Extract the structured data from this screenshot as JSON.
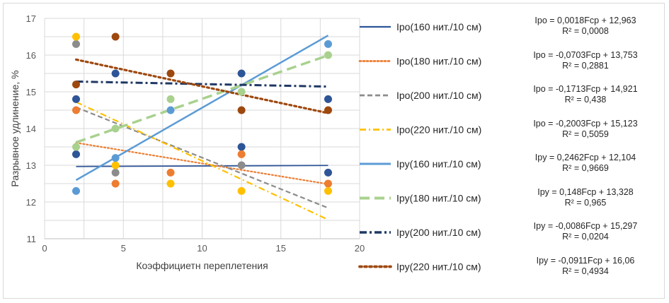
{
  "chart_data": {
    "type": "scatter",
    "xlabel": "Коэффициетн переплетения",
    "ylabel": "Разрывное удлинение, %",
    "xlim": [
      0,
      20
    ],
    "ylim": [
      11,
      17
    ],
    "xticks": [
      "0",
      "5",
      "10",
      "15",
      "20"
    ],
    "yticks": [
      "11",
      "12",
      "13",
      "14",
      "15",
      "16",
      "17"
    ],
    "grid": true,
    "legend_position": "right",
    "series": [
      {
        "name": "Ipo(160 нит./10 см)",
        "color": "#2e5597",
        "dash": "solid",
        "width": 1.8,
        "points": [
          [
            2,
            14.8
          ],
          [
            2,
            13.3
          ],
          [
            4.5,
            15.5
          ],
          [
            12.5,
            15.5
          ],
          [
            12.5,
            13.5
          ],
          [
            18,
            14.8
          ],
          [
            18,
            12.8
          ]
        ],
        "trend": {
          "slope": 0.0018,
          "intercept": 12.963
        },
        "equation": "Ipo = 0,0018Fcp + 12,963",
        "r2": "R² = 0,0008"
      },
      {
        "name": "Ipo(180 нит./10 см)",
        "color": "#ed7d31",
        "dash": "dot",
        "width": 2.2,
        "points": [
          [
            2,
            14.5
          ],
          [
            4.5,
            12.5
          ],
          [
            8,
            12.8
          ],
          [
            12.5,
            13.3
          ],
          [
            18,
            12.5
          ]
        ],
        "trend": {
          "slope": -0.0703,
          "intercept": 13.753
        },
        "equation": "Ipo = -0,0703Fcp + 13,753",
        "r2": "R² = 0,2881"
      },
      {
        "name": "Ipo(200 нит./10 см)",
        "color": "#8c8c8c",
        "dash": "dash",
        "width": 2.2,
        "points": [
          [
            2,
            16.3
          ],
          [
            4.5,
            12.8
          ],
          [
            12.5,
            13.0
          ]
        ],
        "trend": {
          "slope": -0.1713,
          "intercept": 14.921
        },
        "equation": "Ipo = -0,1713Fcp + 14,921",
        "r2": "R² = 0,438"
      },
      {
        "name": "Ipo(220 нит./10 см)",
        "color": "#ffc000",
        "dash": "dashdot",
        "width": 2.2,
        "points": [
          [
            2,
            16.5
          ],
          [
            4.5,
            13.0
          ],
          [
            8,
            12.5
          ],
          [
            12.5,
            12.3
          ],
          [
            18,
            12.3
          ]
        ],
        "trend": {
          "slope": -0.2003,
          "intercept": 15.123
        },
        "equation": "Ipo = -0,2003Fcp + 15,123",
        "r2": "R² = 0,5059"
      },
      {
        "name": "Ipy(160 нит./10 см)",
        "color": "#5b9bd5",
        "dash": "solid",
        "width": 2.5,
        "points": [
          [
            2,
            12.3
          ],
          [
            4.5,
            13.2
          ],
          [
            8,
            14.5
          ],
          [
            18,
            16.3
          ]
        ],
        "trend": {
          "slope": 0.2462,
          "intercept": 12.104
        },
        "equation": "Ipy = 0,2462Fcp + 12,104",
        "r2": "R² = 0,9669"
      },
      {
        "name": "Ipy(180 нит./10 см)",
        "color": "#a9d18e",
        "dash": "longdash",
        "width": 3.5,
        "points": [
          [
            2,
            13.5
          ],
          [
            4.5,
            14.0
          ],
          [
            8,
            14.8
          ],
          [
            12.5,
            15.0
          ],
          [
            18,
            16.0
          ]
        ],
        "trend": {
          "slope": 0.148,
          "intercept": 13.328
        },
        "equation": "Ipy = 0,148Fcp + 13,328",
        "r2": "R² = 0,965"
      },
      {
        "name": "Ipy(200 нит./10 см)",
        "color": "#1f3864",
        "dash": "dashdotbold",
        "width": 3,
        "points": [],
        "trend": {
          "slope": -0.0086,
          "intercept": 15.297
        },
        "equation": "Ipy = -0,0086Fcp + 15,297",
        "r2": "R² = 0,0204"
      },
      {
        "name": "Ipy(220 нит./10 см)",
        "color": "#9e480e",
        "dash": "dotbold",
        "width": 3.2,
        "points": [
          [
            2,
            15.2
          ],
          [
            4.5,
            16.5
          ],
          [
            8,
            15.5
          ],
          [
            12.5,
            14.5
          ],
          [
            18,
            14.5
          ]
        ],
        "trend": {
          "slope": -0.0911,
          "intercept": 16.06
        },
        "equation": "Ipy = -0,0911Fcp + 16,06",
        "r2": "R² = 0,4934"
      }
    ]
  }
}
